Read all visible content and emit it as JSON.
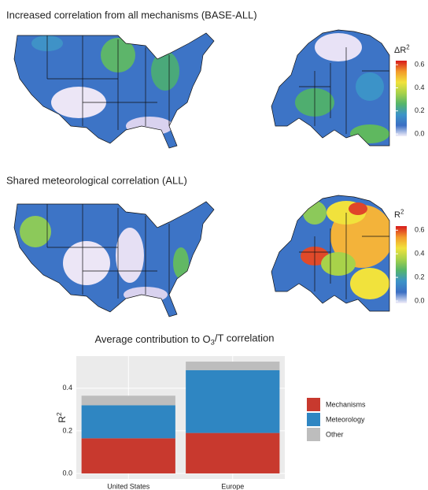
{
  "chart_data": [
    {
      "type": "map",
      "title": "Increased correlation from all mechanisms (BASE-ALL)",
      "colorbar_title": [
        "ΔR",
        "2"
      ],
      "colorbar_lim": [
        -0.02,
        0.635
      ],
      "colorbar_ticks": [
        {
          "value": 0,
          "label": "0.0"
        },
        {
          "value": 0.2,
          "label": "0.2"
        },
        {
          "value": 0.4,
          "label": "0.4"
        },
        {
          "value": 0.6,
          "label": "0.6"
        }
      ],
      "colormap": [
        "#f3effa",
        "#3b6fc4",
        "#3c93c8",
        "#55b56a",
        "#a8d24a",
        "#f1e23c",
        "#f39a2a",
        "#d7191c"
      ]
    },
    {
      "type": "map",
      "title": "Shared meteorological correlation (ALL)",
      "colorbar_title": [
        "R",
        "2"
      ],
      "colorbar_lim": [
        -0.02,
        0.635
      ],
      "colorbar_ticks": [
        {
          "value": 0,
          "label": "0.0"
        },
        {
          "value": 0.2,
          "label": "0.2"
        },
        {
          "value": 0.4,
          "label": "0.4"
        },
        {
          "value": 0.6,
          "label": "0.6"
        }
      ],
      "colormap": [
        "#f3effa",
        "#3b6fc4",
        "#3c93c8",
        "#55b56a",
        "#a8d24a",
        "#f1e23c",
        "#f39a2a",
        "#d7191c"
      ]
    },
    {
      "type": "bar",
      "stacked": true,
      "title": [
        "Average contribution to O",
        "3",
        "/T correlation"
      ],
      "y_label": [
        "R",
        "2"
      ],
      "categories": [
        "United States",
        "Europe"
      ],
      "series": [
        {
          "name": "Mechanisms",
          "color": "#c8392e",
          "values": [
            0.165,
            0.19
          ]
        },
        {
          "name": "Meteorology",
          "color": "#2f86c2",
          "values": [
            0.155,
            0.295
          ]
        },
        {
          "name": "Other",
          "color": "#bdbdbd",
          "values": [
            0.045,
            0.04
          ]
        }
      ],
      "ylim": [
        -0.026,
        0.551
      ],
      "yticks": [
        {
          "value": 0,
          "label": "0.0"
        },
        {
          "value": 0.2,
          "label": "0.2"
        },
        {
          "value": 0.4,
          "label": "0.4"
        }
      ],
      "grid": true
    }
  ]
}
